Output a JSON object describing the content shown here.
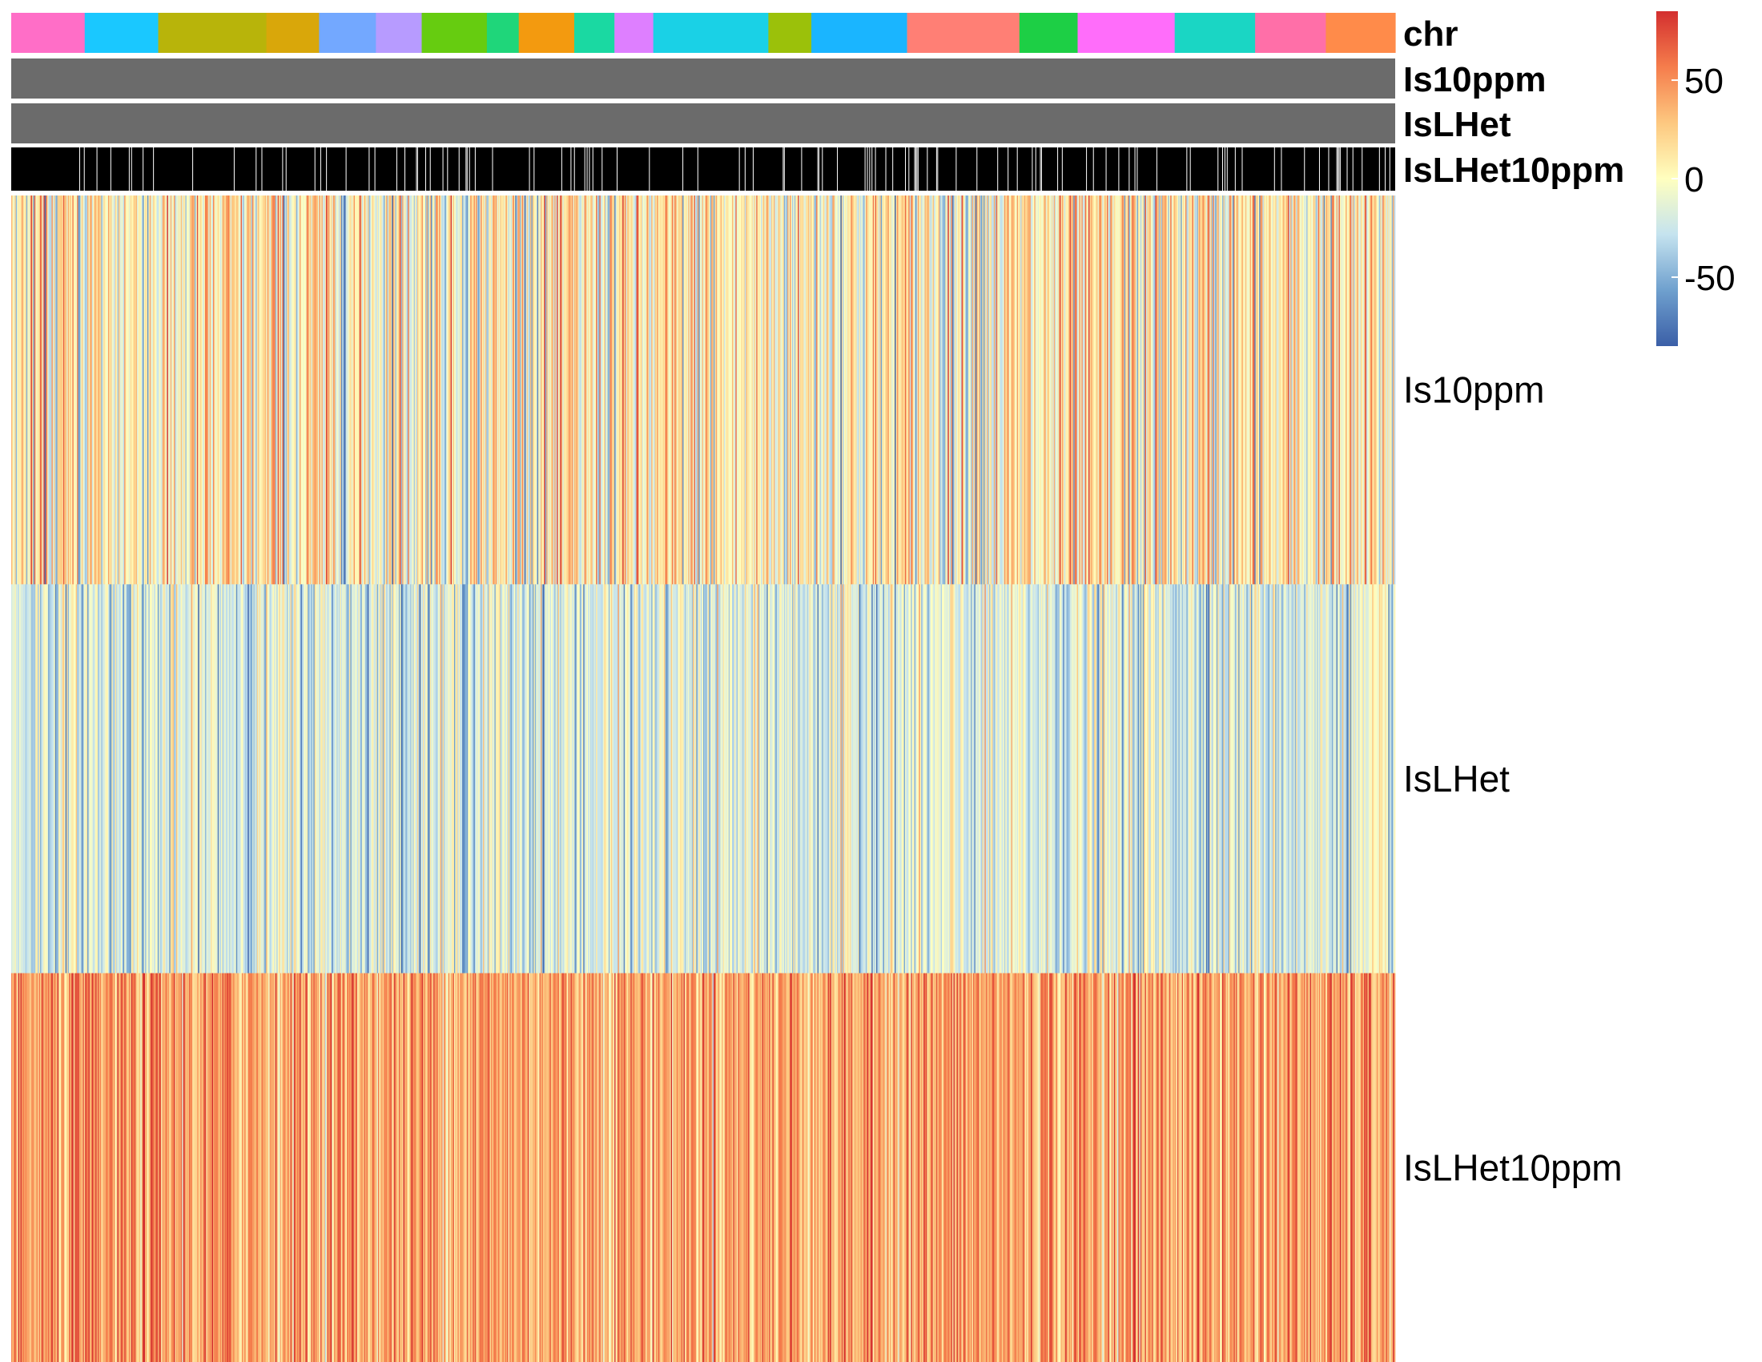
{
  "chart_data": {
    "type": "heatmap",
    "title": "",
    "rows": [
      "Is10ppm",
      "IsLHet",
      "IsLHet10ppm"
    ],
    "column_count": 1200,
    "annotations": [
      {
        "name": "chr",
        "segments": [
          {
            "color": "#FF6EC7",
            "fraction": 0.053
          },
          {
            "color": "#1AC8FF",
            "fraction": 0.053
          },
          {
            "color": "#B8B40A",
            "fraction": 0.078
          },
          {
            "color": "#D9A70A",
            "fraction": 0.038
          },
          {
            "color": "#73A8FF",
            "fraction": 0.041
          },
          {
            "color": "#B79BFF",
            "fraction": 0.033
          },
          {
            "color": "#66CC10",
            "fraction": 0.047
          },
          {
            "color": "#1FD67A",
            "fraction": 0.023
          },
          {
            "color": "#F39A0F",
            "fraction": 0.04
          },
          {
            "color": "#1AD9A2",
            "fraction": 0.029
          },
          {
            "color": "#DE7FFF",
            "fraction": 0.028
          },
          {
            "color": "#1AD1E6",
            "fraction": 0.083
          },
          {
            "color": "#9BC10A",
            "fraction": 0.031
          },
          {
            "color": "#1AB5FF",
            "fraction": 0.069
          },
          {
            "color": "#FF7F75",
            "fraction": 0.081
          },
          {
            "color": "#1DCF45",
            "fraction": 0.042
          },
          {
            "color": "#FF6DFA",
            "fraction": 0.07
          },
          {
            "color": "#1AD6C4",
            "fraction": 0.058
          },
          {
            "color": "#FF6FA8",
            "fraction": 0.051
          },
          {
            "color": "#FF8B4A",
            "fraction": 0.05
          }
        ]
      },
      {
        "name": "Is10ppm",
        "color": "#6B6B6B"
      },
      {
        "name": "IsLHet",
        "color": "#6B6B6B"
      },
      {
        "name": "IsLHet10ppm",
        "color": "#000000",
        "note_color": "#FFFFFF"
      }
    ],
    "row_tendency": {
      "Is10ppm": {
        "mean": 5,
        "sd": 32
      },
      "IsLHet": {
        "mean": -18,
        "sd": 22
      },
      "IsLHet10ppm": {
        "mean": 42,
        "sd": 22
      }
    },
    "colorbar": {
      "range": [
        -85,
        85
      ],
      "ticks": [
        50,
        0,
        -50
      ],
      "tick_labels": [
        "50",
        "0",
        "-50"
      ],
      "colors": [
        "#3B5FA7",
        "#6FA0CE",
        "#C5E3EF",
        "#FFFFBF",
        "#FDC880",
        "#F57D4C",
        "#D32F2F"
      ]
    }
  }
}
